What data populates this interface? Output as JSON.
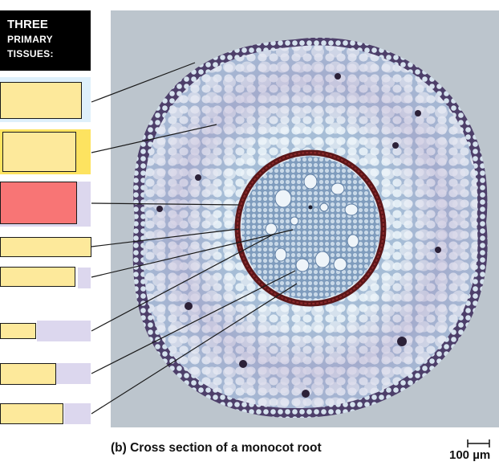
{
  "title": {
    "line1": "Three",
    "line2": "PRIMARY",
    "line3": "TISSUES:"
  },
  "caption": "(b) Cross section of a monocot root",
  "scale_bar": {
    "label": "100 µm"
  },
  "colors": {
    "band_light_blue": "#dff0fb",
    "band_yellow": "#fde360",
    "band_lavender": "#dcd7ee",
    "label_fill": "#fde99b",
    "label_highlight": "#f87575",
    "title_background": "#000000"
  }
}
